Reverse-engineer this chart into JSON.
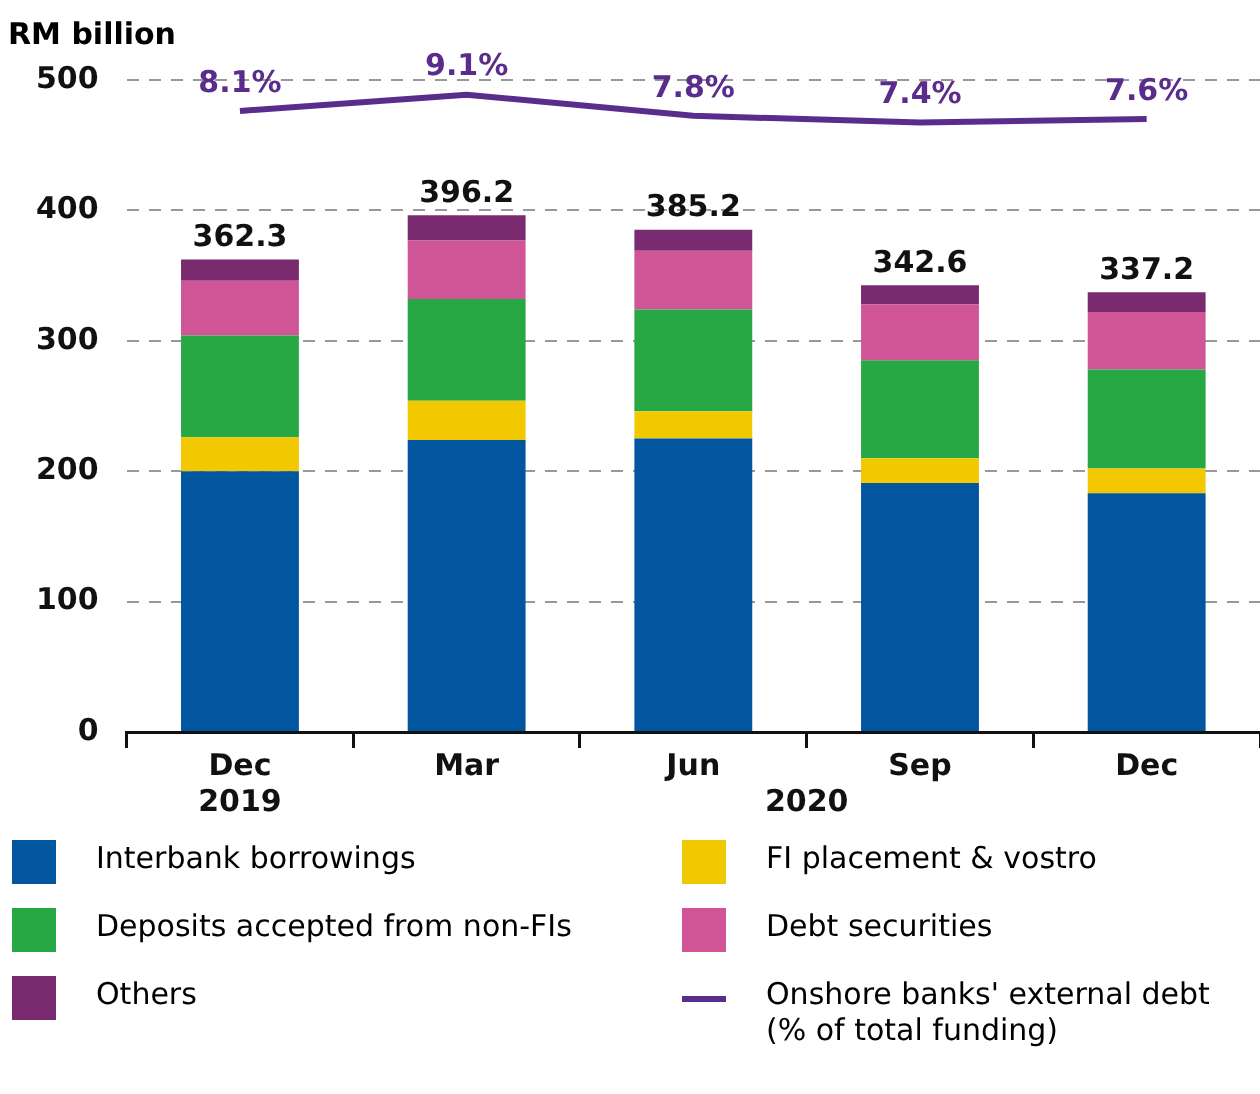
{
  "chart_data": {
    "type": "bar",
    "ylabel": "RM billion",
    "categories": [
      "Dec 2019",
      "Mar",
      "Jun",
      "Sep",
      "Dec"
    ],
    "stacked": true,
    "ylim": [
      0,
      500
    ],
    "yticks": [
      0,
      100,
      200,
      300,
      400,
      500
    ],
    "grid": "y",
    "legend": "bottom",
    "y2lim": [
      -30,
      10
    ],
    "series": [
      {
        "name": "Interbank borrowings",
        "color": "#02559f",
        "values": [
          200,
          224,
          225,
          191,
          183
        ]
      },
      {
        "name": "FI placement & vostro",
        "color": "#f2c800",
        "values": [
          26,
          30,
          21,
          19,
          19
        ]
      },
      {
        "name": "Deposits accepted from non-FIs",
        "color": "#28a745",
        "values": [
          78,
          78,
          78,
          75,
          76
        ]
      },
      {
        "name": "Debt securities",
        "color": "#cf5597",
        "values": [
          42,
          45,
          45,
          43,
          44
        ]
      },
      {
        "name": "Others",
        "color": "#7a2a6e",
        "values": [
          16.3,
          19.2,
          16.2,
          14.6,
          15.2
        ]
      },
      {
        "name": "Onshore banks' external debt (% of total funding)",
        "type": "line",
        "axis": "y2",
        "color": "#5a2d8c",
        "values": [
          8.1,
          9.1,
          7.8,
          7.4,
          7.6
        ],
        "value_labels": [
          "8.1%",
          "9.1%",
          "7.8%",
          "7.4%",
          "7.6%"
        ]
      }
    ],
    "totals": [
      "362.3",
      "396.2",
      "385.2",
      "342.6",
      "337.2"
    ],
    "annotations": [
      "2020"
    ]
  }
}
